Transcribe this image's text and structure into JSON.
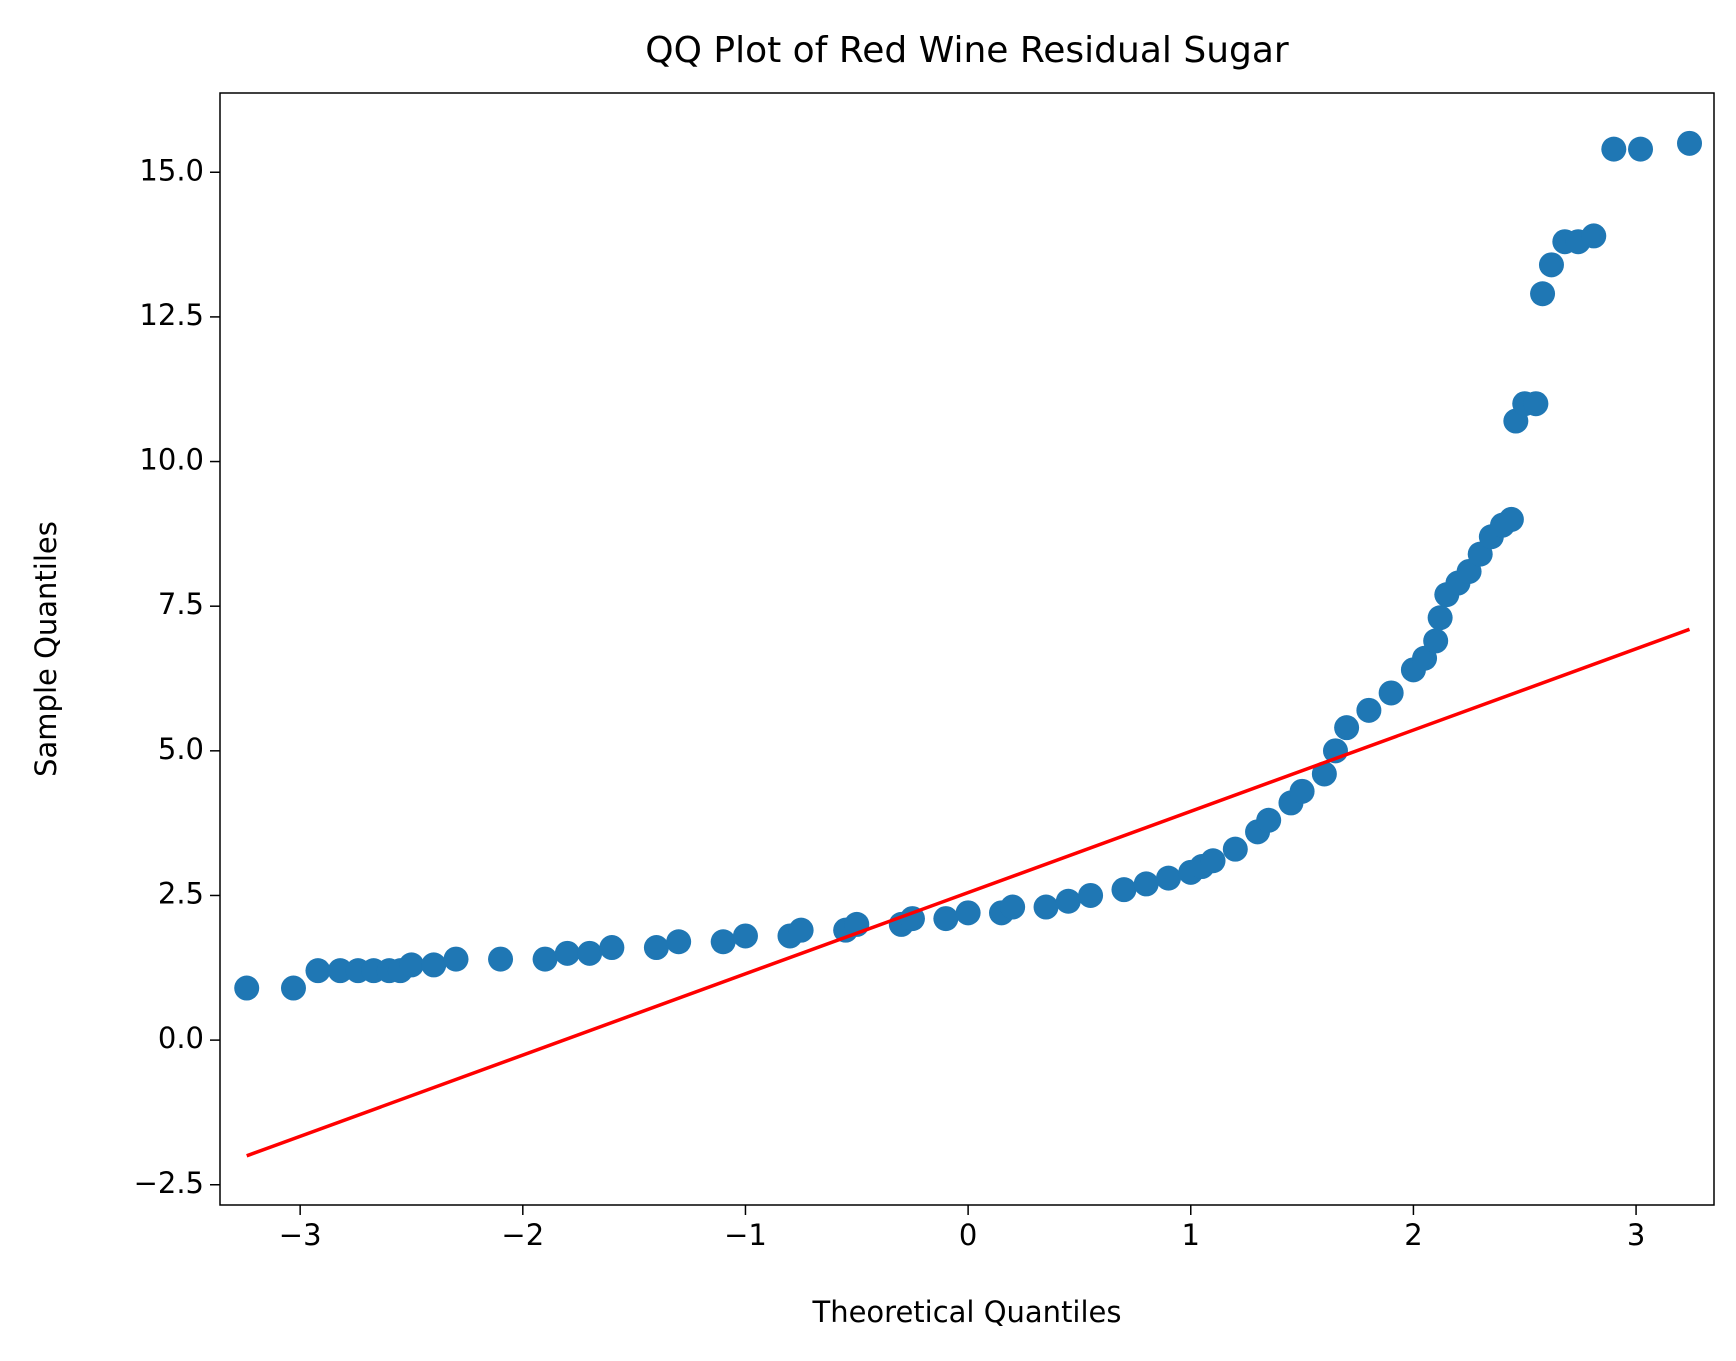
{
  "chart_data": {
    "type": "scatter",
    "title": "QQ Plot of Red Wine Residual Sugar",
    "xlabel": "Theoretical Quantiles",
    "ylabel": "Sample Quantiles",
    "x": [
      -3.24,
      -3.03,
      -2.92,
      -2.82,
      -2.74,
      -2.67,
      -2.6,
      -2.55,
      -2.5,
      -2.4,
      -2.3,
      -2.1,
      -1.9,
      -1.8,
      -1.7,
      -1.6,
      -1.4,
      -1.3,
      -1.1,
      -1.0,
      -0.8,
      -0.75,
      -0.55,
      -0.5,
      -0.3,
      -0.25,
      -0.1,
      0.0,
      0.15,
      0.2,
      0.35,
      0.45,
      0.55,
      0.7,
      0.8,
      0.9,
      1.0,
      1.05,
      1.1,
      1.2,
      1.3,
      1.35,
      1.45,
      1.5,
      1.6,
      1.65,
      1.7,
      1.8,
      1.9,
      2.0,
      2.05,
      2.1,
      2.12,
      2.15,
      2.2,
      2.25,
      2.3,
      2.35,
      2.4,
      2.44,
      2.46,
      2.5,
      2.55,
      2.58,
      2.62,
      2.68,
      2.74,
      2.81,
      2.9,
      3.02,
      3.24
    ],
    "values": [
      0.9,
      0.9,
      1.2,
      1.2,
      1.2,
      1.2,
      1.2,
      1.2,
      1.3,
      1.3,
      1.4,
      1.4,
      1.4,
      1.5,
      1.5,
      1.6,
      1.6,
      1.7,
      1.7,
      1.8,
      1.8,
      1.9,
      1.9,
      2.0,
      2.0,
      2.1,
      2.1,
      2.2,
      2.2,
      2.3,
      2.3,
      2.4,
      2.5,
      2.6,
      2.7,
      2.8,
      2.9,
      3.0,
      3.1,
      3.3,
      3.6,
      3.8,
      4.1,
      4.3,
      4.6,
      5.0,
      5.4,
      5.7,
      6.0,
      6.4,
      6.6,
      6.9,
      7.3,
      7.7,
      7.9,
      8.1,
      8.4,
      8.7,
      8.9,
      9.0,
      10.7,
      11.0,
      11.0,
      12.9,
      13.4,
      13.8,
      13.8,
      13.9,
      15.4,
      15.4,
      15.5
    ],
    "color": "#1f77b4",
    "line": {
      "x": [
        -3.24,
        3.24
      ],
      "values": [
        -2.0,
        7.1
      ],
      "color": "#ff0000"
    },
    "xlim": [
      -3.36,
      3.35
    ],
    "ylim": [
      -2.85,
      16.37
    ],
    "xticks": [
      {
        "value": -3,
        "label": "−3"
      },
      {
        "value": -2,
        "label": "−2"
      },
      {
        "value": -1,
        "label": "−1"
      },
      0,
      1,
      2,
      3
    ],
    "yticks": [
      {
        "value": -2.5,
        "label": "−2.5"
      },
      {
        "value": 0,
        "label": "0.0"
      },
      {
        "value": 2.5,
        "label": "2.5"
      },
      {
        "value": 5,
        "label": "5.0"
      },
      {
        "value": 7.5,
        "label": "7.5"
      },
      {
        "value": 10,
        "label": "10.0"
      },
      {
        "value": 12.5,
        "label": "12.5"
      },
      {
        "value": 15,
        "label": "15.0"
      }
    ],
    "grid": false
  }
}
